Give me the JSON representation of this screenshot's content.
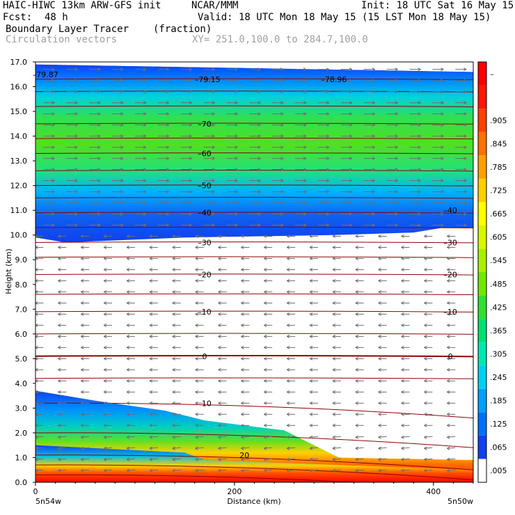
{
  "header": {
    "model": "HAIC-HIWC 13km ARW-GFS init",
    "center": "NCAR/MMM",
    "init": "Init: 18 UTC Sat 16 May 15",
    "fcst_label": "Fcst:",
    "fcst_value": "48 h",
    "valid": "Valid: 18 UTC Mon 18 May 15 (15 LST Mon 18 May 15)",
    "field": "Boundary Layer Tracer",
    "units": "(fraction)",
    "overlay": "Circulation vectors",
    "xy": "XY= 251.0,100.0 to 284.7,100.0"
  },
  "chart_data": {
    "type": "heatmap",
    "title": "Boundary Layer Tracer",
    "xlabel": "Distance (km)",
    "ylabel": "Height (km)",
    "xlim": [
      0,
      440
    ],
    "ylim": [
      0,
      17
    ],
    "x_ticks": [
      0,
      200,
      400
    ],
    "y_ticks": [
      0.0,
      1.0,
      2.0,
      3.0,
      4.0,
      5.0,
      6.0,
      7.0,
      8.0,
      9.0,
      10.0,
      11.0,
      12.0,
      13.0,
      14.0,
      15.0,
      16.0,
      17.0
    ],
    "x_end_labels": [
      "5n54w",
      "5n50w"
    ],
    "colorbar": {
      "labels": [
        ".005",
        ".065",
        ".125",
        ".185",
        ".245",
        ".305",
        ".365",
        ".425",
        ".485",
        ".545",
        ".605",
        ".665",
        ".725",
        ".785",
        ".845",
        ".905",
        "",
        "–"
      ],
      "colors": [
        "#ffffff",
        "#1040f0",
        "#0070ff",
        "#00a0ff",
        "#00d0f0",
        "#00e8b0",
        "#00e070",
        "#30e030",
        "#70e800",
        "#a8f000",
        "#d8f800",
        "#ffff00",
        "#ffd000",
        "#ffa000",
        "#ff7000",
        "#ff4000",
        "#ff1800",
        "#ff0000"
      ]
    },
    "temperature_contour_labels": [
      {
        "text": "–79.87",
        "x": 10,
        "y": 16.5
      },
      {
        "text": "–79.15",
        "x": 173,
        "y": 16.3
      },
      {
        "text": "–78.96",
        "x": 300,
        "y": 16.3
      },
      {
        "text": "–70",
        "x": 170,
        "y": 14.5
      },
      {
        "text": "–60",
        "x": 170,
        "y": 13.3
      },
      {
        "text": "–50",
        "x": 170,
        "y": 12.0
      },
      {
        "text": "–40",
        "x": 170,
        "y": 10.9
      },
      {
        "text": "–30",
        "x": 170,
        "y": 9.7
      },
      {
        "text": "–20",
        "x": 170,
        "y": 8.4
      },
      {
        "text": "–10",
        "x": 170,
        "y": 6.9
      },
      {
        "text": "0",
        "x": 170,
        "y": 5.1
      },
      {
        "text": "10",
        "x": 172,
        "y": 3.2
      },
      {
        "text": "20",
        "x": 210,
        "y": 1.1
      },
      {
        "text": "–40",
        "x": 417,
        "y": 11.0
      },
      {
        "text": "–30",
        "x": 417,
        "y": 9.7
      },
      {
        "text": "–20",
        "x": 417,
        "y": 8.4
      },
      {
        "text": "–10",
        "x": 417,
        "y": 6.9
      },
      {
        "text": "0",
        "x": 417,
        "y": 5.1
      }
    ],
    "tracer_layers": {
      "upper_band_km": [
        10.0,
        16.6
      ],
      "upper_core_km": [
        12.6,
        15.6
      ],
      "lower_plume_top_km": [
        [
          0,
          3.7
        ],
        [
          60,
          3.3
        ],
        [
          130,
          2.9
        ],
        [
          170,
          2.5
        ],
        [
          250,
          2.1
        ],
        [
          305,
          1.0
        ]
      ],
      "surface_layer_top_km": [
        0.8,
        0.5
      ]
    },
    "legend_position": "right",
    "grid": false
  }
}
